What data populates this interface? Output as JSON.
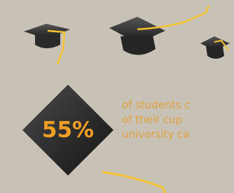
{
  "stat": {
    "value": "55%",
    "text_lines": [
      "of students c",
      "of their cup",
      "university ca"
    ]
  }
}
